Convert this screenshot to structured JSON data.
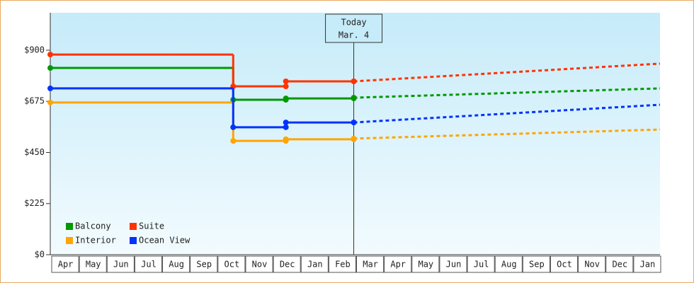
{
  "chart_data": {
    "type": "step-line",
    "categories": [
      "Apr",
      "May",
      "Jun",
      "Jul",
      "Aug",
      "Sep",
      "Oct",
      "Nov",
      "Dec",
      "Jan",
      "Feb",
      "Mar",
      "Apr",
      "May",
      "Jun",
      "Jul",
      "Aug",
      "Sep",
      "Oct",
      "Nov",
      "Dec",
      "Jan"
    ],
    "x": [
      0,
      6.6,
      8.5,
      10.95
    ],
    "forecast_x": 22,
    "xlim": [
      0,
      22
    ],
    "ylim": [
      0,
      1065
    ],
    "yticks": [
      {
        "value": 0,
        "label": "$0"
      },
      {
        "value": 225,
        "label": "$225"
      },
      {
        "value": 450,
        "label": "$450"
      },
      {
        "value": 675,
        "label": "$675"
      },
      {
        "value": 900,
        "label": "$900"
      }
    ],
    "annotation": "Today",
    "annotation_date": "Mar. 4",
    "annotation_x": 10.95,
    "legend": "lower left",
    "series": [
      {
        "name": "Balcony",
        "color": "#009900",
        "values": [
          822,
          682,
          688,
          691
        ],
        "forecast": 732
      },
      {
        "name": "Suite",
        "color": "#ff3300",
        "values": [
          881,
          741,
          763,
          763
        ],
        "forecast": 841
      },
      {
        "name": "Interior",
        "color": "#ffa500",
        "values": [
          670,
          501,
          508,
          511
        ],
        "forecast": 551
      },
      {
        "name": "Ocean View",
        "color": "#0033ff",
        "values": [
          732,
          561,
          582,
          582
        ],
        "forecast": 660
      }
    ]
  }
}
